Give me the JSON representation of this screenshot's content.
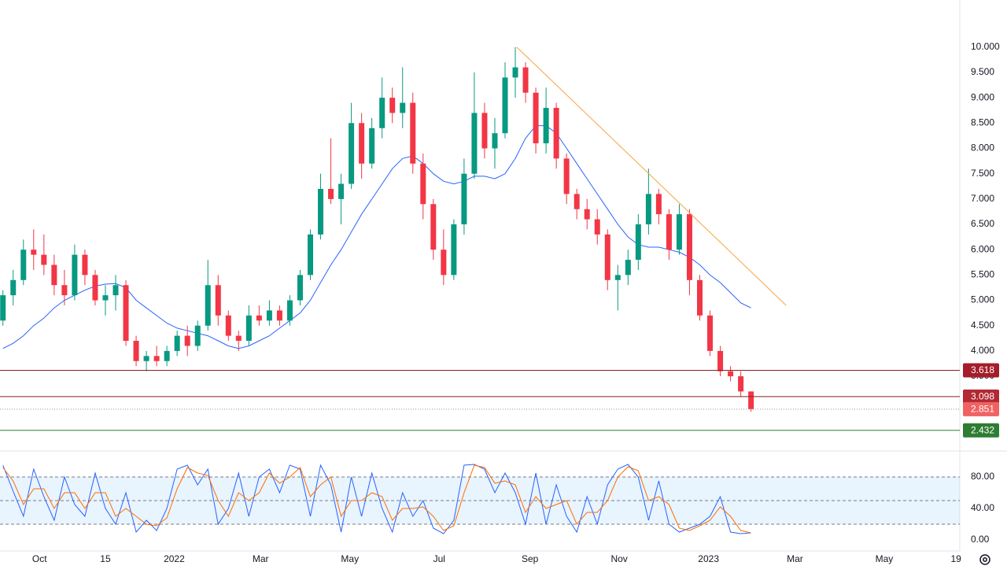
{
  "chart_data": [
    {
      "type": "candlestick",
      "x": [
        "2021-09-06",
        "2021-09-13",
        "2021-09-20",
        "2021-09-27",
        "2021-10-04",
        "2021-10-11",
        "2021-10-18",
        "2021-10-25",
        "2021-11-01",
        "2021-11-08",
        "2021-11-15",
        "2021-11-22",
        "2021-11-29",
        "2021-12-06",
        "2021-12-13",
        "2021-12-20",
        "2021-12-27",
        "2022-01-03",
        "2022-01-10",
        "2022-01-17",
        "2022-01-24",
        "2022-01-31",
        "2022-02-07",
        "2022-02-14",
        "2022-02-21",
        "2022-02-28",
        "2022-03-07",
        "2022-03-14",
        "2022-03-21",
        "2022-03-28",
        "2022-04-04",
        "2022-04-11",
        "2022-04-18",
        "2022-04-25",
        "2022-05-02",
        "2022-05-09",
        "2022-05-16",
        "2022-05-23",
        "2022-05-30",
        "2022-06-06",
        "2022-06-13",
        "2022-06-20",
        "2022-06-27",
        "2022-07-04",
        "2022-07-11",
        "2022-07-18",
        "2022-07-25",
        "2022-08-01",
        "2022-08-08",
        "2022-08-15",
        "2022-08-22",
        "2022-08-29",
        "2022-09-05",
        "2022-09-12",
        "2022-09-19",
        "2022-09-26",
        "2022-10-03",
        "2022-10-10",
        "2022-10-17",
        "2022-10-24",
        "2022-10-31",
        "2022-11-07",
        "2022-11-14",
        "2022-11-21",
        "2022-11-28",
        "2022-12-05",
        "2022-12-12",
        "2022-12-19",
        "2022-12-26",
        "2023-01-02",
        "2023-01-09",
        "2023-01-16",
        "2023-01-23",
        "2023-01-30"
      ],
      "open": [
        4.6,
        5.1,
        5.4,
        6.0,
        5.9,
        5.7,
        5.3,
        5.1,
        5.9,
        5.5,
        5.0,
        5.1,
        5.3,
        4.2,
        3.8,
        3.9,
        3.8,
        4.0,
        4.3,
        4.1,
        4.5,
        5.3,
        4.7,
        4.3,
        4.2,
        4.7,
        4.6,
        4.8,
        4.6,
        5.0,
        5.5,
        6.3,
        7.2,
        7.0,
        7.3,
        8.5,
        7.7,
        8.4,
        9.0,
        8.7,
        8.9,
        7.7,
        6.9,
        6.0,
        5.5,
        6.5,
        7.5,
        8.7,
        8.0,
        8.3,
        9.4,
        9.6,
        9.1,
        8.1,
        8.8,
        7.8,
        7.1,
        6.8,
        6.6,
        6.3,
        5.4,
        5.5,
        5.8,
        6.5,
        7.1,
        6.7,
        6.0,
        6.7,
        5.4,
        4.7,
        4.0,
        3.6,
        3.5,
        3.2
      ],
      "high": [
        5.2,
        5.6,
        6.2,
        6.4,
        6.3,
        5.9,
        5.6,
        6.1,
        6.0,
        5.6,
        5.3,
        5.5,
        5.4,
        4.3,
        4.0,
        4.1,
        4.1,
        4.4,
        4.5,
        4.6,
        5.8,
        5.5,
        4.8,
        4.4,
        4.9,
        4.9,
        5.0,
        4.9,
        5.1,
        5.6,
        6.4,
        7.5,
        8.2,
        7.5,
        8.9,
        8.7,
        8.6,
        9.4,
        9.2,
        9.6,
        9.1,
        7.9,
        7.0,
        6.4,
        6.6,
        7.8,
        9.5,
        8.9,
        8.6,
        9.7,
        10.0,
        9.7,
        9.2,
        9.2,
        8.9,
        7.9,
        7.2,
        7.0,
        6.8,
        6.4,
        5.7,
        6.0,
        6.7,
        7.6,
        7.2,
        6.8,
        6.9,
        6.8,
        5.5,
        4.8,
        4.1,
        3.7,
        3.6,
        3.2
      ],
      "low": [
        4.5,
        4.9,
        5.3,
        5.6,
        5.5,
        5.1,
        4.9,
        5.0,
        5.3,
        4.9,
        4.7,
        4.8,
        4.1,
        3.7,
        3.6,
        3.7,
        3.7,
        3.9,
        3.9,
        4.0,
        4.4,
        4.5,
        4.2,
        4.0,
        4.1,
        4.5,
        4.5,
        4.5,
        4.5,
        4.9,
        5.4,
        6.2,
        6.9,
        6.5,
        7.2,
        7.4,
        7.6,
        8.2,
        8.5,
        8.4,
        7.5,
        6.6,
        5.8,
        5.3,
        5.4,
        6.3,
        7.4,
        7.8,
        7.6,
        8.2,
        9.0,
        8.9,
        7.9,
        7.9,
        7.6,
        6.9,
        6.6,
        6.4,
        6.1,
        5.2,
        4.8,
        5.3,
        5.6,
        6.3,
        6.5,
        5.8,
        5.9,
        5.1,
        4.6,
        3.9,
        3.5,
        3.4,
        3.1,
        2.8
      ],
      "close": [
        5.1,
        5.4,
        6.0,
        5.9,
        5.7,
        5.3,
        5.1,
        5.9,
        5.5,
        5.0,
        5.1,
        5.3,
        4.2,
        3.8,
        3.9,
        3.8,
        4.0,
        4.3,
        4.1,
        4.5,
        5.3,
        4.7,
        4.3,
        4.2,
        4.7,
        4.6,
        4.8,
        4.6,
        5.0,
        5.5,
        6.3,
        7.2,
        7.0,
        7.3,
        8.5,
        7.7,
        8.4,
        9.0,
        8.7,
        8.9,
        7.7,
        6.9,
        6.0,
        5.5,
        6.5,
        7.5,
        8.7,
        8.0,
        8.3,
        9.4,
        9.6,
        9.1,
        8.1,
        8.8,
        7.8,
        7.1,
        6.8,
        6.6,
        6.3,
        5.4,
        5.5,
        5.8,
        6.5,
        7.1,
        6.7,
        6.0,
        6.7,
        5.4,
        4.7,
        4.0,
        3.6,
        3.5,
        3.2,
        2.851
      ],
      "up_color": "#089981",
      "down_color": "#f23645",
      "moving_average": {
        "color": "#2962ff",
        "values": [
          4.05,
          4.15,
          4.3,
          4.5,
          4.65,
          4.85,
          5.0,
          5.1,
          5.2,
          5.28,
          5.32,
          5.33,
          5.25,
          5.0,
          4.85,
          4.7,
          4.55,
          4.45,
          4.4,
          4.35,
          4.3,
          4.2,
          4.1,
          4.05,
          4.1,
          4.2,
          4.3,
          4.45,
          4.6,
          4.75,
          5.0,
          5.35,
          5.7,
          6.0,
          6.35,
          6.7,
          7.0,
          7.3,
          7.6,
          7.8,
          7.85,
          7.7,
          7.5,
          7.35,
          7.3,
          7.35,
          7.45,
          7.45,
          7.4,
          7.5,
          7.8,
          8.2,
          8.45,
          8.45,
          8.3,
          8.0,
          7.7,
          7.4,
          7.1,
          6.8,
          6.5,
          6.25,
          6.1,
          6.05,
          6.05,
          6.0,
          5.95,
          5.85,
          5.7,
          5.5,
          5.35,
          5.15,
          4.95,
          4.85
        ]
      },
      "trendline": {
        "color": "#f7a440",
        "x": [
          "2022-08-23",
          "2023-02-23"
        ],
        "values": [
          10.0,
          4.9
        ]
      },
      "levels": {
        "values": [
          3.618,
          3.098,
          2.851,
          2.432
        ],
        "line_colors": [
          "#8e1b22",
          "#8e1b22",
          "#9598a1",
          "#2e7d32"
        ],
        "label_colors": [
          "#a51d2a",
          "#b22833",
          "#f06262",
          "#2e7d32"
        ],
        "styles": [
          "solid",
          "solid",
          "dotted",
          "solid"
        ]
      },
      "xlim": [
        "2021-09-04",
        "2023-06-20"
      ],
      "ylim": [
        2.04,
        10.93
      ],
      "yticks": [
        {
          "value": 10.0,
          "label": "10.000"
        },
        {
          "value": 9.5,
          "label": "9.500"
        },
        {
          "value": 9.0,
          "label": "9.000"
        },
        {
          "value": 8.5,
          "label": "8.500"
        },
        {
          "value": 8.0,
          "label": "8.000"
        },
        {
          "value": 7.5,
          "label": "7.500"
        },
        {
          "value": 7.0,
          "label": "7.000"
        },
        {
          "value": 6.5,
          "label": "6.500"
        },
        {
          "value": 6.0,
          "label": "6.000"
        },
        {
          "value": 5.5,
          "label": "5.500"
        },
        {
          "value": 5.0,
          "label": "5.000"
        },
        {
          "value": 4.5,
          "label": "4.500"
        },
        {
          "value": 4.0,
          "label": "4.000"
        },
        {
          "value": 3.5,
          "label": "3.500"
        }
      ]
    },
    {
      "type": "line",
      "x": [
        "2021-09-06",
        "2021-09-13",
        "2021-09-20",
        "2021-09-27",
        "2021-10-04",
        "2021-10-11",
        "2021-10-18",
        "2021-10-25",
        "2021-11-01",
        "2021-11-08",
        "2021-11-15",
        "2021-11-22",
        "2021-11-29",
        "2021-12-06",
        "2021-12-13",
        "2021-12-20",
        "2021-12-27",
        "2022-01-03",
        "2022-01-10",
        "2022-01-17",
        "2022-01-24",
        "2022-01-31",
        "2022-02-07",
        "2022-02-14",
        "2022-02-21",
        "2022-02-28",
        "2022-03-07",
        "2022-03-14",
        "2022-03-21",
        "2022-03-28",
        "2022-04-04",
        "2022-04-11",
        "2022-04-18",
        "2022-04-25",
        "2022-05-02",
        "2022-05-09",
        "2022-05-16",
        "2022-05-23",
        "2022-05-30",
        "2022-06-06",
        "2022-06-13",
        "2022-06-20",
        "2022-06-27",
        "2022-07-04",
        "2022-07-11",
        "2022-07-18",
        "2022-07-25",
        "2022-08-01",
        "2022-08-08",
        "2022-08-15",
        "2022-08-22",
        "2022-08-29",
        "2022-09-05",
        "2022-09-12",
        "2022-09-19",
        "2022-09-26",
        "2022-10-03",
        "2022-10-10",
        "2022-10-17",
        "2022-10-24",
        "2022-10-31",
        "2022-11-07",
        "2022-11-14",
        "2022-11-21",
        "2022-11-28",
        "2022-12-05",
        "2022-12-12",
        "2022-12-19",
        "2022-12-26",
        "2023-01-02",
        "2023-01-09",
        "2023-01-16",
        "2023-01-23",
        "2023-01-30"
      ],
      "series": [
        {
          "color": "#2962ff",
          "values": [
            95,
            62,
            30,
            90,
            55,
            25,
            80,
            45,
            30,
            85,
            40,
            20,
            60,
            10,
            25,
            12,
            40,
            90,
            95,
            70,
            90,
            20,
            40,
            85,
            30,
            80,
            90,
            60,
            95,
            90,
            30,
            95,
            70,
            10,
            80,
            30,
            85,
            40,
            10,
            60,
            30,
            50,
            15,
            8,
            25,
            95,
            96,
            90,
            60,
            85,
            60,
            20,
            85,
            20,
            70,
            30,
            10,
            55,
            20,
            70,
            90,
            96,
            80,
            25,
            75,
            20,
            10,
            15,
            20,
            30,
            55,
            10,
            8,
            9
          ]
        },
        {
          "color": "#ff6d00",
          "values": [
            92,
            75,
            45,
            65,
            65,
            40,
            60,
            60,
            40,
            60,
            60,
            30,
            40,
            30,
            20,
            18,
            28,
            65,
            92,
            85,
            82,
            50,
            30,
            60,
            50,
            60,
            85,
            72,
            80,
            92,
            55,
            70,
            80,
            30,
            50,
            50,
            60,
            55,
            25,
            40,
            40,
            42,
            30,
            12,
            18,
            60,
            95,
            92,
            72,
            75,
            70,
            35,
            55,
            40,
            45,
            50,
            20,
            35,
            35,
            50,
            80,
            93,
            88,
            50,
            55,
            45,
            15,
            12,
            18,
            25,
            42,
            30,
            12,
            9
          ]
        }
      ],
      "band_fill": [
        20,
        80
      ],
      "band_fill_color": "rgba(33,150,243,0.1)",
      "band_lines": [
        80,
        50,
        20
      ],
      "xlim": [
        "2021-09-04",
        "2023-06-20"
      ],
      "ylim": [
        -14,
        106
      ],
      "yticks": [
        {
          "value": 80,
          "label": "80.00"
        },
        {
          "value": 40,
          "label": "40.00"
        },
        {
          "value": 0,
          "label": "0.00"
        }
      ],
      "xticks": [
        {
          "value": "2021-10-01",
          "label": "Oct"
        },
        {
          "value": "2021-11-15",
          "label": "15"
        },
        {
          "value": "2022-01-01",
          "label": "2022"
        },
        {
          "value": "2022-03-01",
          "label": "Mar"
        },
        {
          "value": "2022-05-01",
          "label": "May"
        },
        {
          "value": "2022-07-01",
          "label": "Jul"
        },
        {
          "value": "2022-09-01",
          "label": "Sep"
        },
        {
          "value": "2022-11-01",
          "label": "Nov"
        },
        {
          "value": "2023-01-01",
          "label": "2023"
        },
        {
          "value": "2023-03-01",
          "label": "Mar"
        },
        {
          "value": "2023-05-01",
          "label": "May"
        },
        {
          "value": "2023-06-19",
          "label": "19"
        }
      ]
    }
  ]
}
